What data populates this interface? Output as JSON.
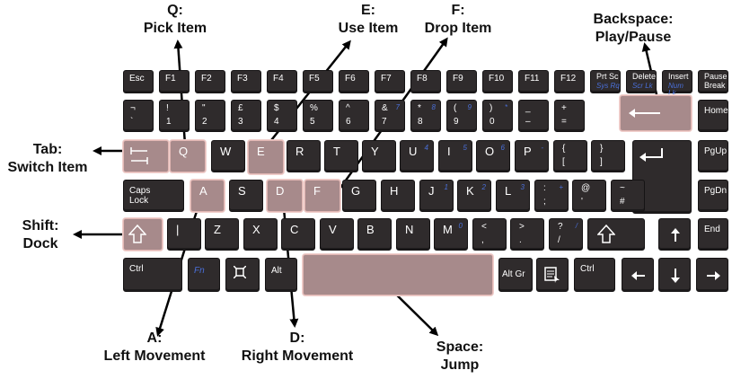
{
  "colors": {
    "key": "#2f2b2c",
    "highlight": "#a78a8b",
    "highlight_border": "#e2b7b4",
    "arrow": "#000000"
  },
  "labels": {
    "q": {
      "key": "Q:",
      "action": "Pick Item"
    },
    "e": {
      "key": "E:",
      "action": "Use Item"
    },
    "f": {
      "key": "F:",
      "action": "Drop Item"
    },
    "backspace": {
      "key": "Backspace:",
      "action": "Play/Pause"
    },
    "tab": {
      "key": "Tab:",
      "action": "Switch Item"
    },
    "shift": {
      "key": "Shift:",
      "action": "Dock"
    },
    "a": {
      "key": "A:",
      "action": "Left Movement"
    },
    "d": {
      "key": "D:",
      "action": "Right Movement"
    },
    "space": {
      "key": "Space:",
      "action": "Jump"
    }
  },
  "keys": {
    "esc": "Esc",
    "f1": "F1",
    "f2": "F2",
    "f3": "F3",
    "f4": "F4",
    "f5": "F5",
    "f6": "F6",
    "f7": "F7",
    "f8": "F8",
    "f9": "F9",
    "f10": "F10",
    "f11": "F11",
    "f12": "F12",
    "prtsc": "Prt Sc",
    "sysrq": "Sys Rq",
    "delete": "Delete",
    "scrlk": "Scr Lk",
    "insert": "Insert",
    "numlk": "Num Lk",
    "pause": "Pause",
    "break": "Break",
    "backtick_top": "¬",
    "backtick_bot": "`",
    "n1_top": "!",
    "n1": "1",
    "n2_top": "\"",
    "n2": "2",
    "n3_top": "£",
    "n3": "3",
    "n4_top": "$",
    "n4": "4",
    "n5_top": "%",
    "n5": "5",
    "n6_top": "^",
    "n6": "6",
    "n7_top": "&",
    "n7": "7",
    "n8_top": "*",
    "n8": "8",
    "n9_top": "(",
    "n9": "9",
    "n0_top": ")",
    "n0": "0",
    "minus_top": "_",
    "minus": "–",
    "plus_top": "+",
    "plus": "=",
    "home": "Home",
    "q": "Q",
    "w": "W",
    "e": "E",
    "r": "R",
    "t": "T",
    "y": "Y",
    "u": "U",
    "i": "I",
    "o": "O",
    "p": "P",
    "lbrace": "{",
    "lbracket": "[",
    "rbrace": "}",
    "rbracket": "]",
    "pgup": "PgUp",
    "caps1": "Caps",
    "caps2": "Lock",
    "a": "A",
    "s": "S",
    "d": "D",
    "f": "F",
    "g": "G",
    "h": "H",
    "j": "J",
    "k": "K",
    "l": "L",
    "colon": ":",
    "semicolon": ";",
    "at": "@",
    "apos": "'",
    "tilde": "~",
    "hash": "#",
    "pgdn": "PgDn",
    "pipe": "|",
    "z": "Z",
    "x": "X",
    "c": "C",
    "v": "V",
    "b": "B",
    "n": "N",
    "m": "M",
    "lt": "<",
    "comma": ",",
    "gt": ">",
    "period": ".",
    "question": "?",
    "slash": "/",
    "end": "End",
    "ctrl": "Ctrl",
    "fn": "Fn",
    "alt": "Alt",
    "altgr": "Alt Gr",
    "kp1": "1",
    "kp2": "2",
    "kp3": "3",
    "kp4": "4",
    "kp5": "5",
    "kp6": "6",
    "kp7": "7",
    "kp8": "8",
    "kp9": "9",
    "kp0": "0",
    "kpstar": "*",
    "kpslash": "/",
    "kpplus": "+",
    "kpminus": "-"
  }
}
